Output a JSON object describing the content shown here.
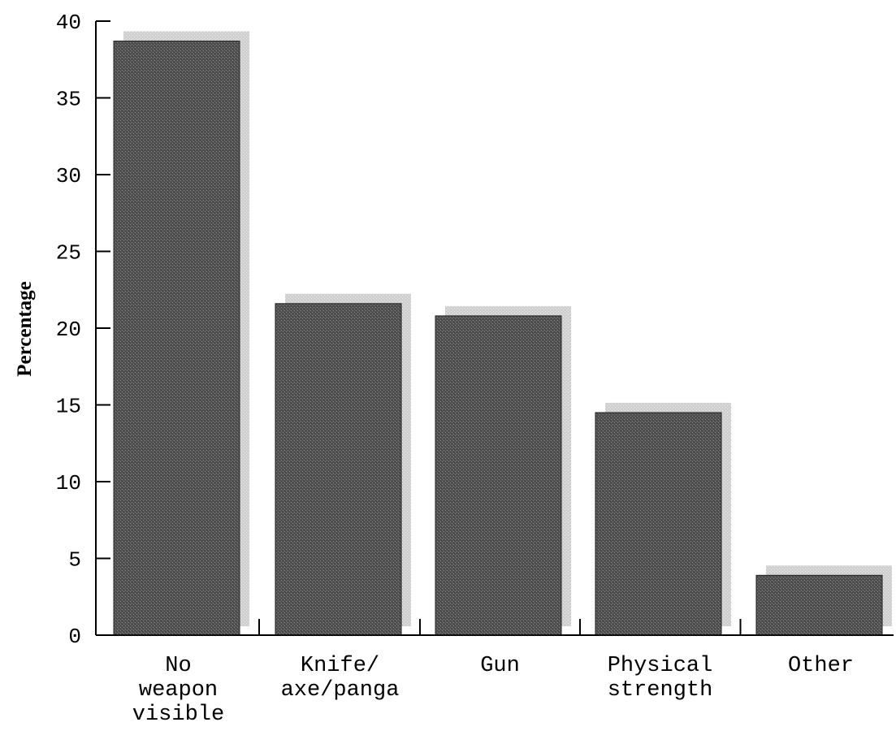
{
  "chart_data": {
    "type": "bar",
    "categories": [
      [
        "No",
        "weapon",
        "visible"
      ],
      [
        "Knife/",
        "axe/panga"
      ],
      [
        "Gun"
      ],
      [
        "Physical",
        "strength"
      ],
      [
        "Other"
      ]
    ],
    "values": [
      38.7,
      21.6,
      20.8,
      14.5,
      3.9
    ],
    "ylabel": "Percentage",
    "xlabel": "",
    "title": "",
    "ylim": [
      0,
      40
    ],
    "yticks": [
      "0",
      "5",
      "10",
      "15",
      "20",
      "25",
      "30",
      "35",
      "40"
    ],
    "grid": false,
    "legend": "none"
  },
  "colors": {
    "bar_fill": "#555555",
    "bar_shadow": "#c8c8c8",
    "axis": "#000000"
  }
}
